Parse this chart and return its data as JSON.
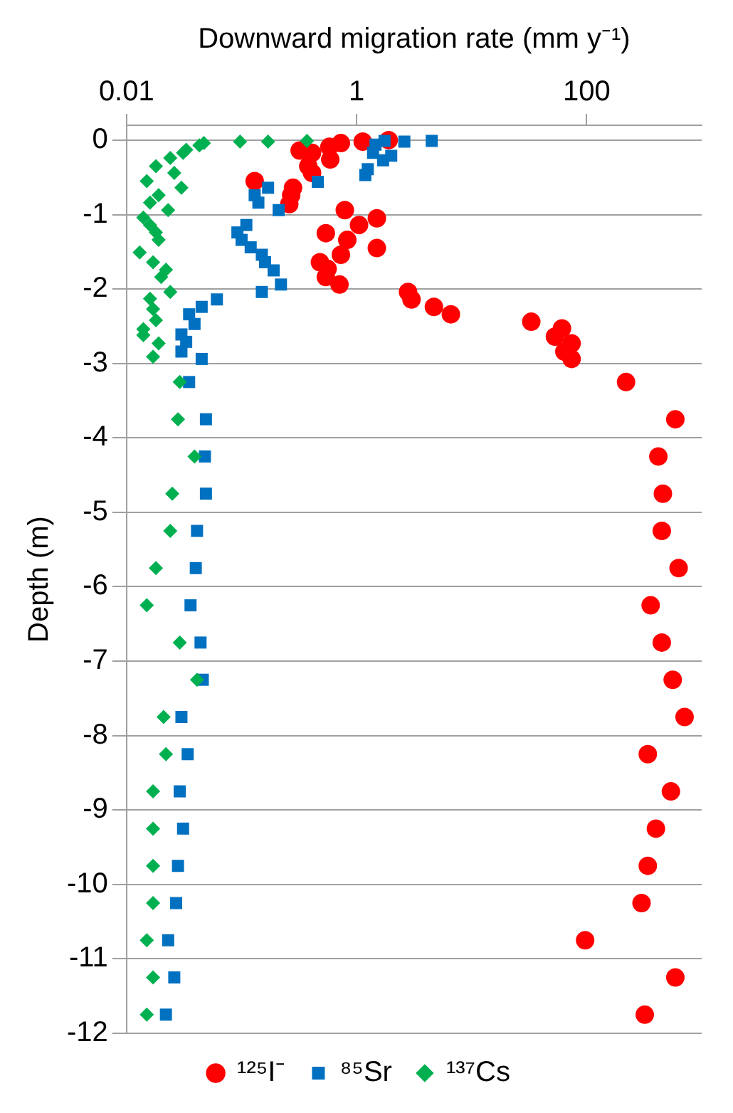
{
  "chart_data": {
    "type": "scatter",
    "xlabel": "Downward migration rate (mm y⁻¹)",
    "ylabel": "Depth (m)",
    "log": "x",
    "grid": "y",
    "legend": "bottom",
    "xlim": [
      0.01,
      1000
    ],
    "xticks": [
      0.01,
      1,
      100
    ],
    "ylim": [
      -12,
      0.2
    ],
    "yticks": [
      0,
      -1,
      -2,
      -3,
      -4,
      -5,
      -6,
      -7,
      -8,
      -9,
      -10,
      -11,
      -12
    ],
    "series": [
      {
        "name": "¹²⁵I⁻",
        "color": "#ff0000",
        "marker": "circle",
        "x": [
          0.32,
          0.41,
          0.58,
          0.73,
          1.13,
          1.9,
          0.38,
          0.41,
          0.59,
          0.13,
          0.28,
          0.27,
          0.26,
          0.79,
          0.54,
          1.05,
          1.5,
          0.83,
          1.5,
          0.73,
          0.48,
          0.56,
          0.54,
          0.71,
          2.8,
          3.0,
          4.7,
          6.6,
          33,
          61,
          53,
          74,
          64,
          74,
          220,
          590,
          420,
          460,
          450,
          630,
          360,
          450,
          560,
          710,
          340,
          540,
          400,
          340,
          300,
          97,
          590,
          320
        ],
        "values": [
          -0.14,
          -0.17,
          -0.09,
          -0.04,
          -0.02,
          0,
          -0.35,
          -0.44,
          -0.26,
          -0.55,
          -0.64,
          -0.74,
          -0.86,
          -0.94,
          -1.25,
          -1.14,
          -1.05,
          -1.34,
          -1.45,
          -1.54,
          -1.64,
          -1.73,
          -1.84,
          -1.94,
          -2.04,
          -2.14,
          -2.24,
          -2.34,
          -2.44,
          -2.53,
          -2.64,
          -2.73,
          -2.84,
          -2.94,
          -3.25,
          -3.75,
          -4.25,
          -4.75,
          -5.25,
          -5.75,
          -6.25,
          -6.75,
          -7.25,
          -7.75,
          -8.25,
          -8.75,
          -9.25,
          -9.75,
          -10.25,
          -10.75,
          -11.25,
          -11.75
        ]
      },
      {
        "name": "⁸⁵Sr",
        "color": "#0070c0",
        "marker": "square",
        "x": [
          4.5,
          2.6,
          1.75,
          1.46,
          1.39,
          2.0,
          1.7,
          1.25,
          1.19,
          0.46,
          0.17,
          0.13,
          0.14,
          0.21,
          0.11,
          0.092,
          0.1,
          0.12,
          0.15,
          0.16,
          0.19,
          0.22,
          0.15,
          0.061,
          0.045,
          0.035,
          0.039,
          0.03,
          0.033,
          0.03,
          0.045,
          0.035,
          0.049,
          0.048,
          0.049,
          0.041,
          0.04,
          0.036,
          0.044,
          0.046,
          0.03,
          0.034,
          0.029,
          0.031,
          0.028,
          0.027,
          0.023,
          0.026,
          0.022
        ],
        "values": [
          -0.01,
          -0.02,
          -0.01,
          -0.06,
          -0.17,
          -0.21,
          -0.27,
          -0.39,
          -0.47,
          -0.56,
          -0.64,
          -0.74,
          -0.84,
          -0.94,
          -1.14,
          -1.24,
          -1.34,
          -1.44,
          -1.54,
          -1.64,
          -1.75,
          -1.94,
          -2.04,
          -2.14,
          -2.24,
          -2.34,
          -2.47,
          -2.61,
          -2.71,
          -2.84,
          -2.94,
          -3.25,
          -3.75,
          -4.25,
          -4.75,
          -5.25,
          -5.75,
          -6.25,
          -6.75,
          -7.25,
          -7.75,
          -8.25,
          -8.75,
          -9.25,
          -9.75,
          -10.25,
          -10.75,
          -11.25,
          -11.75
        ]
      },
      {
        "name": "¹³⁷Cs",
        "color": "#00b050",
        "marker": "diamond",
        "x": [
          0.37,
          0.17,
          0.097,
          0.047,
          0.043,
          0.033,
          0.031,
          0.024,
          0.018,
          0.026,
          0.015,
          0.03,
          0.019,
          0.016,
          0.023,
          0.014,
          0.016,
          0.018,
          0.019,
          0.013,
          0.017,
          0.022,
          0.02,
          0.024,
          0.016,
          0.017,
          0.018,
          0.014,
          0.014,
          0.019,
          0.017,
          0.029,
          0.028,
          0.039,
          0.025,
          0.024,
          0.018,
          0.015,
          0.029,
          0.041,
          0.021,
          0.022,
          0.017,
          0.017,
          0.017,
          0.017,
          0.015,
          0.017,
          0.015
        ],
        "values": [
          -0.01,
          -0.02,
          -0.02,
          -0.04,
          -0.07,
          -0.13,
          -0.17,
          -0.24,
          -0.35,
          -0.44,
          -0.55,
          -0.64,
          -0.74,
          -0.84,
          -0.94,
          -1.04,
          -1.14,
          -1.24,
          -1.34,
          -1.51,
          -1.64,
          -1.74,
          -1.84,
          -2.04,
          -2.13,
          -2.27,
          -2.42,
          -2.54,
          -2.62,
          -2.73,
          -2.91,
          -3.25,
          -3.75,
          -4.25,
          -4.75,
          -5.25,
          -5.75,
          -6.25,
          -6.75,
          -7.25,
          -7.75,
          -8.25,
          -8.75,
          -9.25,
          -9.75,
          -10.25,
          -10.75,
          -11.25,
          -11.75
        ]
      }
    ]
  }
}
